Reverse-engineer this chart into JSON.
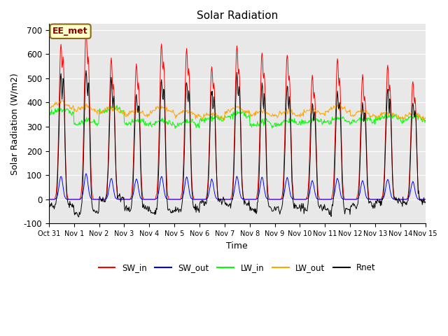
{
  "title": "Solar Radiation",
  "xlabel": "Time",
  "ylabel": "Solar Radiation (W/m2)",
  "ylim": [
    -100,
    725
  ],
  "yticks": [
    -100,
    0,
    100,
    200,
    300,
    400,
    500,
    600,
    700
  ],
  "xtick_labels": [
    "Oct 31",
    "Nov 1",
    "Nov 2",
    "Nov 3",
    "Nov 4",
    "Nov 5",
    "Nov 6",
    "Nov 7",
    "Nov 8",
    "Nov 9",
    "Nov 10",
    "Nov 11",
    "Nov 12",
    "Nov 13",
    "Nov 14",
    "Nov 15"
  ],
  "annotation_text": "EE_met",
  "annotation_color": "#8B0000",
  "line_colors": {
    "SW_in": "#FF0000",
    "SW_out": "#0000FF",
    "LW_in": "#00FF00",
    "LW_out": "#FFA500",
    "Rnet": "#000000"
  },
  "legend_labels": [
    "SW_in",
    "SW_out",
    "LW_in",
    "LW_out",
    "Rnet"
  ],
  "background_color": "#E8E8E8",
  "figure_color": "#FFFFFF",
  "n_days": 15
}
